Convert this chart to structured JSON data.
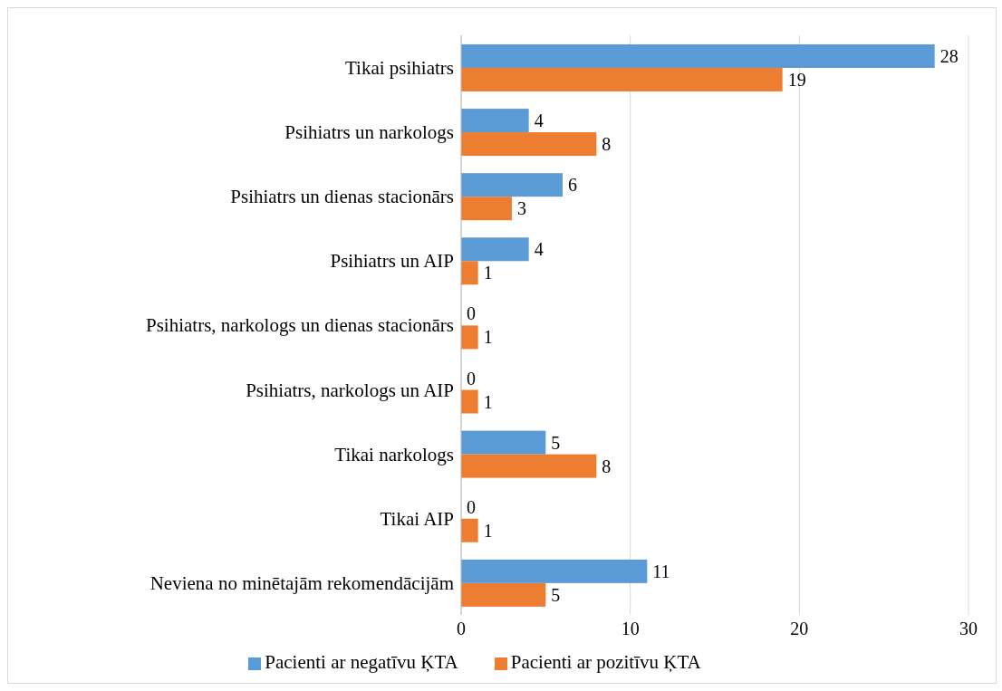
{
  "chart_data": {
    "type": "bar",
    "orientation": "horizontal",
    "categories": [
      "Tikai psihiatrs",
      "Psihiatrs un narkologs",
      "Psihiatrs un dienas stacionārs",
      "Psihiatrs un AIP",
      "Psihiatrs, narkologs un dienas stacionārs",
      "Psihiatrs, narkologs un AIP",
      "Tikai narkologs",
      "Tikai AIP",
      "Neviena no minētajām rekomendācijām"
    ],
    "series": [
      {
        "name": "Pacienti ar negatīvu ĶTA",
        "color": "#5b9bd5",
        "values": [
          28,
          4,
          6,
          4,
          0,
          0,
          5,
          0,
          11
        ]
      },
      {
        "name": "Pacienti ar pozitīvu ĶTA",
        "color": "#ed7d31",
        "values": [
          19,
          8,
          3,
          1,
          1,
          1,
          8,
          1,
          5
        ]
      }
    ],
    "xlim": [
      0,
      30
    ],
    "xticks": [
      0,
      10,
      20,
      30
    ],
    "grid": "x",
    "legend": "bottom",
    "data_labels": true
  }
}
